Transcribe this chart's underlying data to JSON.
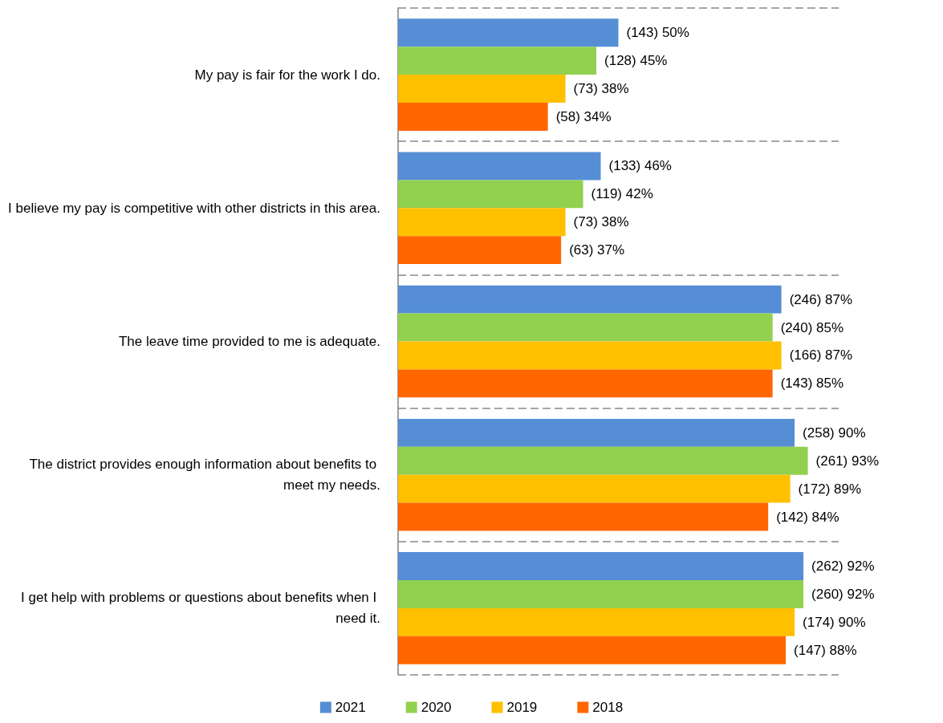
{
  "chart_data": {
    "type": "bar",
    "orientation": "horizontal",
    "categories": [
      "My pay is fair for the work I do.",
      "I believe my pay is competitive with other districts in this area.",
      "The leave time provided to me is adequate.",
      "The district provides enough information about benefits to meet my needs.",
      "I get help with problems or questions about benefits when I need it."
    ],
    "series": [
      {
        "name": "2021",
        "color": "#558ed5",
        "values": [
          50,
          46,
          87,
          90,
          92
        ],
        "value_labels": [
          "(143) 50%",
          "(133) 46%",
          "(246) 87%",
          "(258) 90%",
          "(262) 92%"
        ]
      },
      {
        "name": "2020",
        "color": "#92d050",
        "values": [
          45,
          42,
          85,
          93,
          92
        ],
        "value_labels": [
          "(128) 45%",
          "(119) 42%",
          "(240) 85%",
          "(261) 93%",
          "(260) 92%"
        ]
      },
      {
        "name": "2019",
        "color": "#ffc000",
        "values": [
          38,
          38,
          87,
          89,
          90
        ],
        "value_labels": [
          "(73) 38%",
          "(73) 38%",
          "(166) 87%",
          "(172) 89%",
          "(174) 90%"
        ]
      },
      {
        "name": "2018",
        "color": "#ff6600",
        "values": [
          34,
          37,
          85,
          84,
          88
        ],
        "value_labels": [
          "(58) 34%",
          "(63) 37%",
          "(143) 85%",
          "(142) 84%",
          "(147) 88%"
        ]
      }
    ],
    "grid": "y",
    "legend": "bottom",
    "tick_labels": "y"
  }
}
